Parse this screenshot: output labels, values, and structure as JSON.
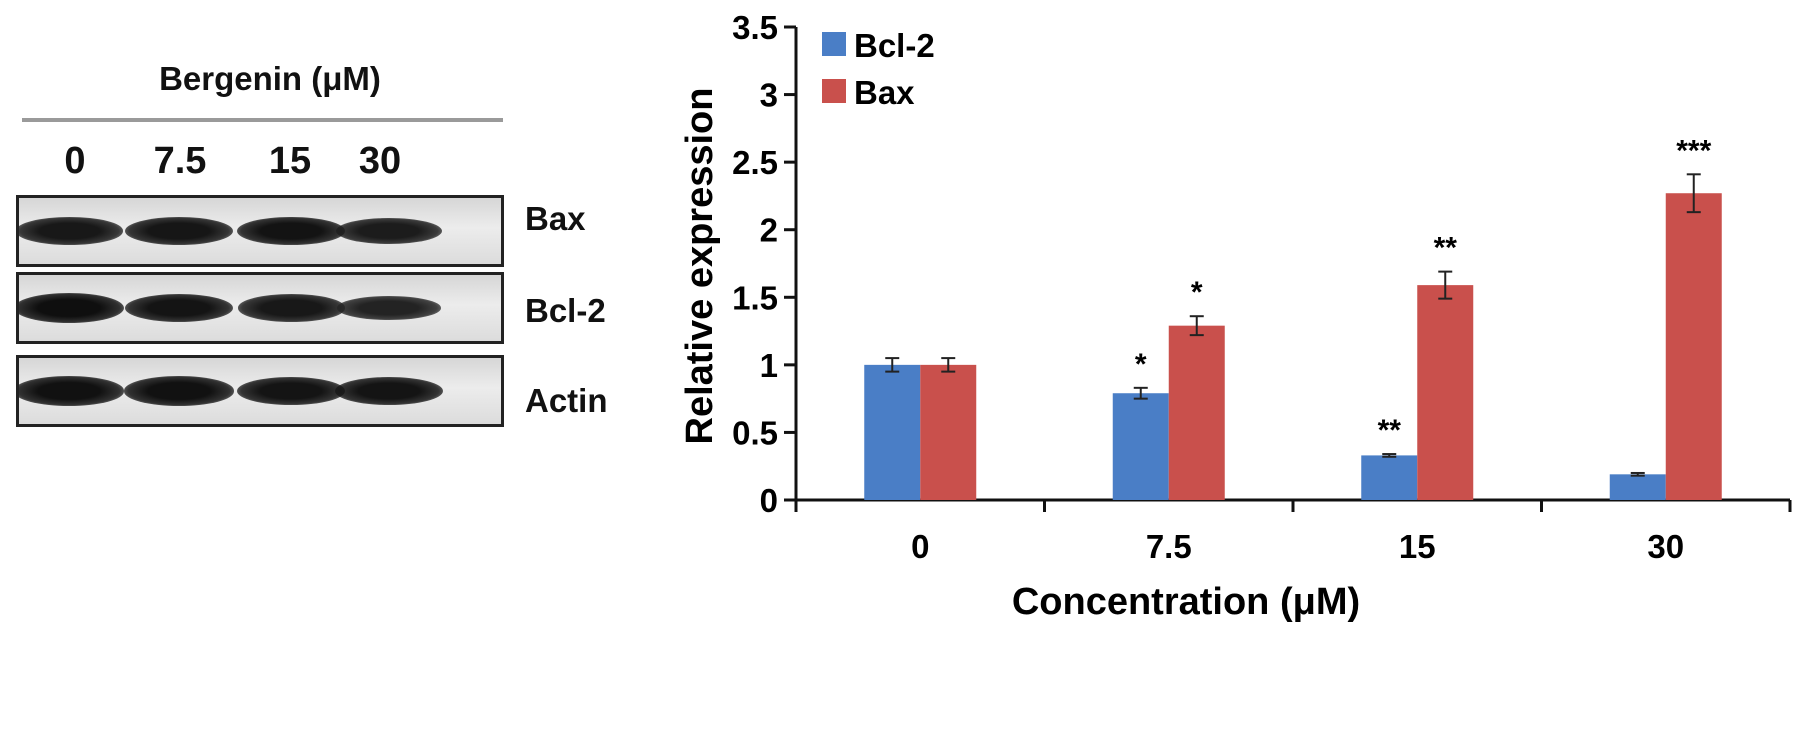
{
  "blot": {
    "title": "Bergenin (μM)",
    "lanes": [
      "0",
      "7.5",
      "15",
      "30"
    ],
    "rows": [
      {
        "name": "Bax",
        "intensity": [
          0.8,
          0.85,
          0.92,
          0.72
        ]
      },
      {
        "name": "Bcl-2",
        "intensity": [
          1.0,
          0.88,
          0.8,
          0.55
        ]
      },
      {
        "name": "Actin",
        "intensity": [
          0.95,
          0.95,
          0.9,
          0.9
        ]
      }
    ]
  },
  "colors": {
    "bcl2": "#4a7ec6",
    "bax": "#c9504c"
  },
  "chart_data": {
    "type": "bar",
    "categories": [
      "0",
      "7.5",
      "15",
      "30"
    ],
    "series": [
      {
        "name": "Bcl-2",
        "color": "#4a7ec6",
        "values": [
          1.0,
          0.79,
          0.33,
          0.19
        ],
        "errors": [
          0.05,
          0.04,
          0.01,
          0.01
        ],
        "annotations": [
          "",
          "*",
          "**",
          ""
        ]
      },
      {
        "name": "Bax",
        "color": "#c9504c",
        "values": [
          1.0,
          1.29,
          1.59,
          2.27
        ],
        "errors": [
          0.05,
          0.07,
          0.1,
          0.14
        ],
        "annotations": [
          "",
          "*",
          "**",
          "***"
        ]
      }
    ],
    "xlabel": "Concentration (μM)",
    "ylabel": "Relative expression",
    "ylim": [
      0,
      3.5
    ],
    "yticks": [
      "0",
      "0.5",
      "1",
      "1.5",
      "2",
      "2.5",
      "3",
      "3.5"
    ],
    "legend": "top-left",
    "grid": false
  }
}
